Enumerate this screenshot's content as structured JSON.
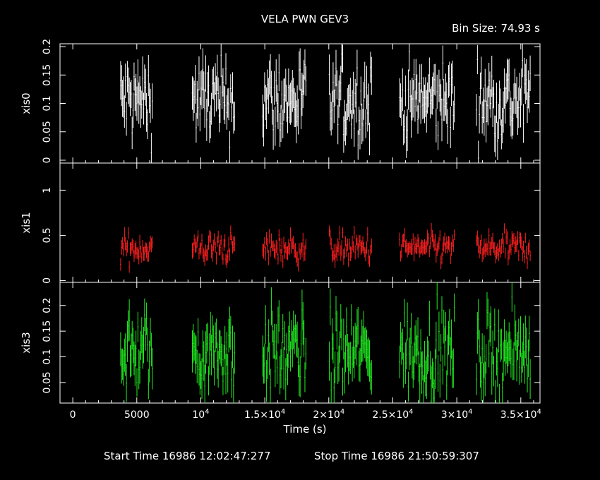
{
  "chart_data": {
    "type": "scatter",
    "title": "VELA PWN GEV3",
    "bin_size_label": "Bin Size: 74.93 s",
    "xlabel": "Time (s)",
    "xlim": [
      -1000,
      36500
    ],
    "x_ticks": [
      0,
      5000,
      10000,
      15000,
      20000,
      25000,
      30000,
      35000
    ],
    "x_tick_labels": [
      {
        "m": "0",
        "e": ""
      },
      {
        "m": "5000",
        "e": ""
      },
      {
        "m": "10",
        "e": "4"
      },
      {
        "m": "1.5×10",
        "e": "4"
      },
      {
        "m": "2×10",
        "e": "4"
      },
      {
        "m": "2.5×10",
        "e": "4"
      },
      {
        "m": "3×10",
        "e": "4"
      },
      {
        "m": "3.5×10",
        "e": "4"
      }
    ],
    "start_label": "Start Time 16986 12:02:47:277",
    "stop_label": "Stop Time 16986 21:50:59:307",
    "orbits": [
      [
        3700,
        6200
      ],
      [
        9300,
        12600
      ],
      [
        14800,
        18200
      ],
      [
        20000,
        23300
      ],
      [
        25500,
        29800
      ],
      [
        31500,
        35700
      ]
    ],
    "panels": [
      {
        "name": "xis0",
        "color": "#ffffff",
        "ylim": [
          -0.005,
          0.205
        ],
        "y_ticks": [
          0,
          0.05,
          0.1,
          0.15,
          0.2
        ],
        "y_tick_labels": [
          "0",
          "0.05",
          "0.1",
          "0.15",
          "0.2"
        ],
        "mean": 0.105,
        "sigma": 0.035
      },
      {
        "name": "xis1",
        "color": "#ff2020",
        "ylim": [
          -0.02,
          1.3
        ],
        "y_ticks": [
          0,
          0.5,
          1
        ],
        "y_tick_labels": [
          "0",
          "0.5",
          "1"
        ],
        "mean": 0.36,
        "sigma": 0.08
      },
      {
        "name": "xis3",
        "color": "#22ee22",
        "ylim": [
          0.01,
          0.245
        ],
        "y_ticks": [
          0.05,
          0.1,
          0.15,
          0.2
        ],
        "y_tick_labels": [
          "0.05",
          "0.1",
          "0.15",
          "0.2"
        ],
        "mean": 0.11,
        "sigma": 0.038
      }
    ]
  }
}
